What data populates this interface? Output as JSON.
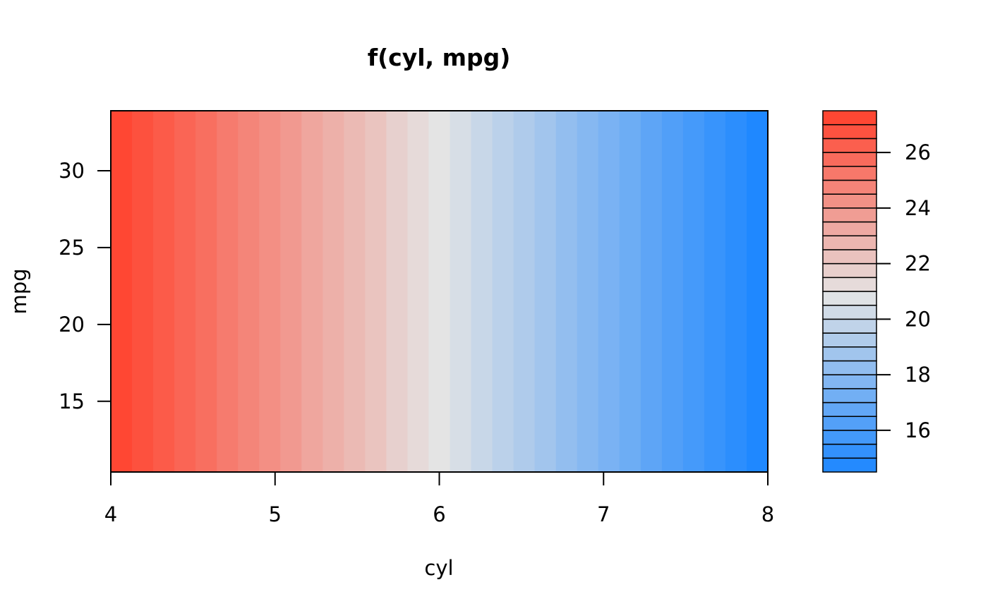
{
  "chart_data": {
    "type": "heatmap",
    "title": "f(cyl, mpg)",
    "xlabel": "cyl",
    "ylabel": "mpg",
    "xlim": [
      4,
      8
    ],
    "ylim": [
      10.4,
      33.9
    ],
    "x_ticks": [
      "4",
      "5",
      "6",
      "7",
      "8"
    ],
    "y_ticks": [
      "15",
      "20",
      "25",
      "30"
    ],
    "legend_ticks": [
      "16",
      "18",
      "20",
      "22",
      "24",
      "26"
    ],
    "legend_range": [
      14.5,
      27.5
    ],
    "legend_placement": "right",
    "value_range": [
      14.6,
      27.2
    ],
    "values_vary_with": "cyl",
    "column_values": [
      27.2,
      26.8,
      26.4,
      26.0,
      25.6,
      25.1,
      24.7,
      24.3,
      23.9,
      23.4,
      23.0,
      22.6,
      22.2,
      21.7,
      21.3,
      20.9,
      20.5,
      20.0,
      19.6,
      19.2,
      18.8,
      18.3,
      17.9,
      17.5,
      17.1,
      16.6,
      16.2,
      15.8,
      15.4,
      15.0,
      14.6
    ],
    "grid": false,
    "color_low": "#1f88ff",
    "color_mid": "#e4e4e4",
    "color_high": "#ff4733"
  }
}
